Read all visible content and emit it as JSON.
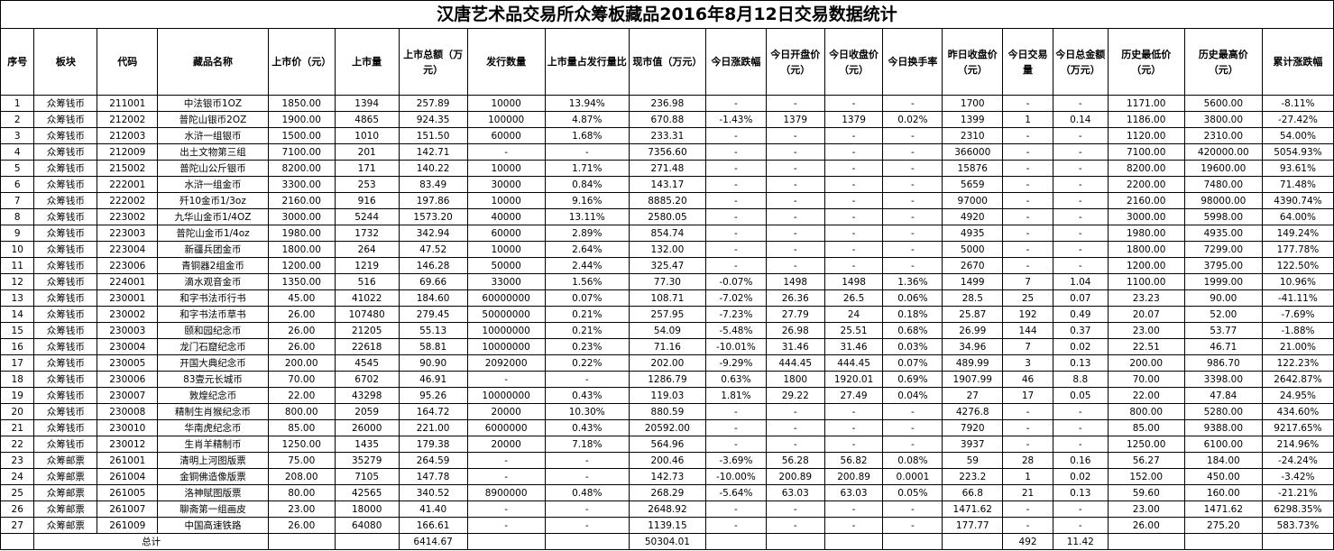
{
  "title": "汉唐艺术品交易所众筹板藏品2016年8月12日交易数据统计",
  "headers": [
    "序号",
    "板块",
    "代码",
    "藏品名称",
    "上市价（元）",
    "上市量",
    "上市总额（万元）",
    "发行数量",
    "上市量占发行量比",
    "现市值（万元）",
    "今日涨跌幅",
    "今日开盘价（元）",
    "今日收盘价（元）",
    "今日换手率",
    "昨日收盘价（元）",
    "今日交易量",
    "今日总金额（万元）",
    "历史最低价（元）",
    "历史最高价（元）",
    "累计涨跌幅"
  ],
  "rows": [
    [
      "1",
      "众筹钱币",
      "211001",
      "中法银币1OZ",
      "1850.00",
      "1394",
      "257.89",
      "10000",
      "13.94%",
      "236.98",
      "-",
      "-",
      "-",
      "-",
      "1700",
      "-",
      "-",
      "1171.00",
      "5600.00",
      "-8.11%"
    ],
    [
      "2",
      "众筹钱币",
      "212002",
      "普陀山银币2OZ",
      "1900.00",
      "4865",
      "924.35",
      "100000",
      "4.87%",
      "670.88",
      "-1.43%",
      "1379",
      "1379",
      "0.02%",
      "1399",
      "1",
      "0.14",
      "1186.00",
      "3800.00",
      "-27.42%"
    ],
    [
      "3",
      "众筹钱币",
      "212003",
      "水浒一组银币",
      "1500.00",
      "1010",
      "151.50",
      "60000",
      "1.68%",
      "233.31",
      "-",
      "-",
      "-",
      "-",
      "2310",
      "-",
      "-",
      "1120.00",
      "2310.00",
      "54.00%"
    ],
    [
      "4",
      "众筹钱币",
      "212009",
      "出土文物第三组",
      "7100.00",
      "201",
      "142.71",
      "-",
      "-",
      "7356.60",
      "-",
      "-",
      "-",
      "-",
      "366000",
      "-",
      "-",
      "7100.00",
      "420000.00",
      "5054.93%"
    ],
    [
      "5",
      "众筹钱币",
      "215002",
      "普陀山公斤银币",
      "8200.00",
      "171",
      "140.22",
      "10000",
      "1.71%",
      "271.48",
      "-",
      "-",
      "-",
      "-",
      "15876",
      "-",
      "-",
      "8200.00",
      "19600.00",
      "93.61%"
    ],
    [
      "6",
      "众筹钱币",
      "222001",
      "水浒一组金币",
      "3300.00",
      "253",
      "83.49",
      "30000",
      "0.84%",
      "143.17",
      "-",
      "-",
      "-",
      "-",
      "5659",
      "-",
      "-",
      "2200.00",
      "7480.00",
      "71.48%"
    ],
    [
      "7",
      "众筹钱币",
      "222002",
      "歼10金币1/3oz",
      "2160.00",
      "916",
      "197.86",
      "10000",
      "9.16%",
      "8885.20",
      "-",
      "-",
      "-",
      "-",
      "97000",
      "-",
      "-",
      "2160.00",
      "98000.00",
      "4390.74%"
    ],
    [
      "8",
      "众筹钱币",
      "223002",
      "九华山金币1/4OZ",
      "3000.00",
      "5244",
      "1573.20",
      "40000",
      "13.11%",
      "2580.05",
      "-",
      "-",
      "-",
      "-",
      "4920",
      "-",
      "-",
      "3000.00",
      "5998.00",
      "64.00%"
    ],
    [
      "9",
      "众筹钱币",
      "223003",
      "普陀山金币1/4oz",
      "1980.00",
      "1732",
      "342.94",
      "60000",
      "2.89%",
      "854.74",
      "-",
      "-",
      "-",
      "-",
      "4935",
      "-",
      "-",
      "1980.00",
      "4935.00",
      "149.24%"
    ],
    [
      "10",
      "众筹钱币",
      "223004",
      "新疆兵团金币",
      "1800.00",
      "264",
      "47.52",
      "10000",
      "2.64%",
      "132.00",
      "-",
      "-",
      "-",
      "-",
      "5000",
      "-",
      "-",
      "1800.00",
      "7299.00",
      "177.78%"
    ],
    [
      "11",
      "众筹钱币",
      "223006",
      "青铜器2组金币",
      "1200.00",
      "1219",
      "146.28",
      "50000",
      "2.44%",
      "325.47",
      "-",
      "-",
      "-",
      "-",
      "2670",
      "-",
      "-",
      "1200.00",
      "3795.00",
      "122.50%"
    ],
    [
      "12",
      "众筹钱币",
      "224001",
      "滴水观音金币",
      "1350.00",
      "516",
      "69.66",
      "33000",
      "1.56%",
      "77.30",
      "-0.07%",
      "1498",
      "1498",
      "1.36%",
      "1499",
      "7",
      "1.04",
      "1100.00",
      "1999.00",
      "10.96%"
    ],
    [
      "13",
      "众筹钱币",
      "230001",
      "和字书法币行书",
      "45.00",
      "41022",
      "184.60",
      "60000000",
      "0.07%",
      "108.71",
      "-7.02%",
      "26.36",
      "26.5",
      "0.06%",
      "28.5",
      "25",
      "0.07",
      "23.23",
      "90.00",
      "-41.11%"
    ],
    [
      "14",
      "众筹钱币",
      "230002",
      "和字书法币草书",
      "26.00",
      "107480",
      "279.45",
      "50000000",
      "0.21%",
      "257.95",
      "-7.23%",
      "27.79",
      "24",
      "0.18%",
      "25.87",
      "192",
      "0.49",
      "20.07",
      "52.00",
      "-7.69%"
    ],
    [
      "15",
      "众筹钱币",
      "230003",
      "颐和园纪念币",
      "26.00",
      "21205",
      "55.13",
      "10000000",
      "0.21%",
      "54.09",
      "-5.48%",
      "26.98",
      "25.51",
      "0.68%",
      "26.99",
      "144",
      "0.37",
      "23.00",
      "53.77",
      "-1.88%"
    ],
    [
      "16",
      "众筹钱币",
      "230004",
      "龙门石窟纪念币",
      "26.00",
      "22618",
      "58.81",
      "10000000",
      "0.23%",
      "71.16",
      "-10.01%",
      "31.46",
      "31.46",
      "0.03%",
      "34.96",
      "7",
      "0.02",
      "22.51",
      "46.71",
      "21.00%"
    ],
    [
      "17",
      "众筹钱币",
      "230005",
      "开国大典纪念币",
      "200.00",
      "4545",
      "90.90",
      "2092000",
      "0.22%",
      "202.00",
      "-9.29%",
      "444.45",
      "444.45",
      "0.07%",
      "489.99",
      "3",
      "0.13",
      "200.00",
      "986.70",
      "122.23%"
    ],
    [
      "18",
      "众筹钱币",
      "230006",
      "83壹元长城币",
      "70.00",
      "6702",
      "46.91",
      "-",
      "-",
      "1286.79",
      "0.63%",
      "1800",
      "1920.01",
      "0.69%",
      "1907.99",
      "46",
      "8.8",
      "70.00",
      "3398.00",
      "2642.87%"
    ],
    [
      "19",
      "众筹钱币",
      "230007",
      "敦煌纪念币",
      "22.00",
      "43298",
      "95.26",
      "10000000",
      "0.43%",
      "119.03",
      "1.81%",
      "29.22",
      "27.49",
      "0.04%",
      "27",
      "17",
      "0.05",
      "22.00",
      "47.84",
      "24.95%"
    ],
    [
      "20",
      "众筹钱币",
      "230008",
      "精制生肖猴纪念币",
      "800.00",
      "2059",
      "164.72",
      "20000",
      "10.30%",
      "880.59",
      "-",
      "-",
      "-",
      "-",
      "4276.8",
      "-",
      "-",
      "800.00",
      "5280.00",
      "434.60%"
    ],
    [
      "21",
      "众筹钱币",
      "230010",
      "华南虎纪念币",
      "85.00",
      "26000",
      "221.00",
      "6000000",
      "0.43%",
      "20592.00",
      "-",
      "-",
      "-",
      "-",
      "7920",
      "-",
      "-",
      "85.00",
      "9388.00",
      "9217.65%"
    ],
    [
      "22",
      "众筹钱币",
      "230012",
      "生肖羊精制币",
      "1250.00",
      "1435",
      "179.38",
      "20000",
      "7.18%",
      "564.96",
      "-",
      "-",
      "-",
      "-",
      "3937",
      "-",
      "-",
      "1250.00",
      "6100.00",
      "214.96%"
    ],
    [
      "23",
      "众筹邮票",
      "261001",
      "清明上河图版票",
      "75.00",
      "35279",
      "264.59",
      "-",
      "-",
      "200.46",
      "-3.69%",
      "56.28",
      "56.82",
      "0.08%",
      "59",
      "28",
      "0.16",
      "56.27",
      "184.00",
      "-24.24%"
    ],
    [
      "24",
      "众筹邮票",
      "261004",
      "金铜佛造像版票",
      "208.00",
      "7105",
      "147.78",
      "-",
      "-",
      "142.73",
      "-10.00%",
      "200.89",
      "200.89",
      "0.0001",
      "223.2",
      "1",
      "0.02",
      "152.00",
      "450.00",
      "-3.42%"
    ],
    [
      "25",
      "众筹邮票",
      "261005",
      "洛神赋图版票",
      "80.00",
      "42565",
      "340.52",
      "8900000",
      "0.48%",
      "268.29",
      "-5.64%",
      "63.03",
      "63.03",
      "0.05%",
      "66.8",
      "21",
      "0.13",
      "59.60",
      "160.00",
      "-21.21%"
    ],
    [
      "26",
      "众筹邮票",
      "261007",
      "聊斋第一组画皮",
      "23.00",
      "18000",
      "41.40",
      "-",
      "-",
      "2648.92",
      "-",
      "-",
      "-",
      "-",
      "1471.62",
      "-",
      "-",
      "23.00",
      "1471.62",
      "6298.35%"
    ],
    [
      "27",
      "众筹邮票",
      "261009",
      "中国高速铁路",
      "26.00",
      "64080",
      "166.61",
      "-",
      "-",
      "1139.15",
      "-",
      "-",
      "-",
      "-",
      "177.77",
      "-",
      "-",
      "26.00",
      "275.20",
      "583.73%"
    ]
  ],
  "total": {
    "label": "总计",
    "listing_total": "6414.67",
    "market_value": "50304.01",
    "volume": "492",
    "amount": "11.42"
  }
}
